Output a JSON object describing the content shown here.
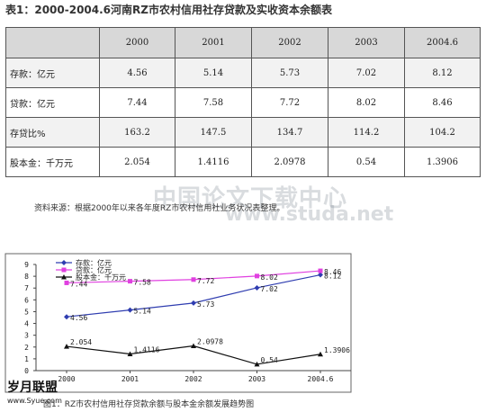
{
  "table_title": "表1：2000-2004.6河南RZ市农村信用社存贷款及实收资本余额表",
  "table": {
    "columns": [
      "",
      "2000",
      "2001",
      "2002",
      "2003",
      "2004.6"
    ],
    "rows": [
      {
        "label": "存款：亿元",
        "values": [
          "4.56",
          "5.14",
          "5.73",
          "7.02",
          "8.12"
        ]
      },
      {
        "label": "贷款：亿元",
        "values": [
          "7.44",
          "7.58",
          "7.72",
          "8.02",
          "8.46"
        ]
      },
      {
        "label": "存贷比%",
        "values": [
          "163.2",
          "147.5",
          "134.7",
          "114.2",
          "104.2"
        ]
      },
      {
        "label": "股本金：千万元",
        "values": [
          "2.054",
          "1.4116",
          "2.0978",
          "0.54",
          "1.3906"
        ]
      }
    ]
  },
  "source_note": "资料来源：根据2000年以来各年度RZ市农村信用社业务状况表整理。",
  "watermark": {
    "line1": "中国论文下载中心",
    "line2": "www.studa.net"
  },
  "chart_data": {
    "type": "line",
    "x": [
      "2000",
      "2001",
      "2002",
      "2003",
      "2004.6"
    ],
    "ylim": [
      0,
      9
    ],
    "yticks": [
      0,
      1,
      2,
      3,
      4,
      5,
      6,
      7,
      8,
      9
    ],
    "legend_position": "top-left",
    "grid": false,
    "series": [
      {
        "name": "存款：亿元",
        "color": "#2f3db0",
        "marker": "diamond",
        "values": [
          4.56,
          5.14,
          5.73,
          7.02,
          8.12
        ],
        "labels": [
          "4.56",
          "5.14",
          "5.73",
          "7.02",
          "8.12"
        ]
      },
      {
        "name": "贷款：亿元",
        "color": "#e040e0",
        "marker": "square",
        "values": [
          7.44,
          7.58,
          7.72,
          8.02,
          8.46
        ],
        "labels": [
          "7.44",
          "7.58",
          "7.72",
          "8.02",
          "8.46"
        ]
      },
      {
        "name": "股本金：千万元",
        "color": "#111111",
        "marker": "triangle",
        "values": [
          2.054,
          1.4116,
          2.0978,
          0.54,
          1.3906
        ],
        "labels": [
          "2.054",
          "1.4116",
          "2.0978",
          "0.54",
          "1.3906"
        ]
      }
    ]
  },
  "chart_caption": "图1：RZ市农村信用社存贷款余额与股本金余额发展趋势图",
  "logo": {
    "text": "岁月联盟",
    "url_text": "www.Syue.com"
  }
}
